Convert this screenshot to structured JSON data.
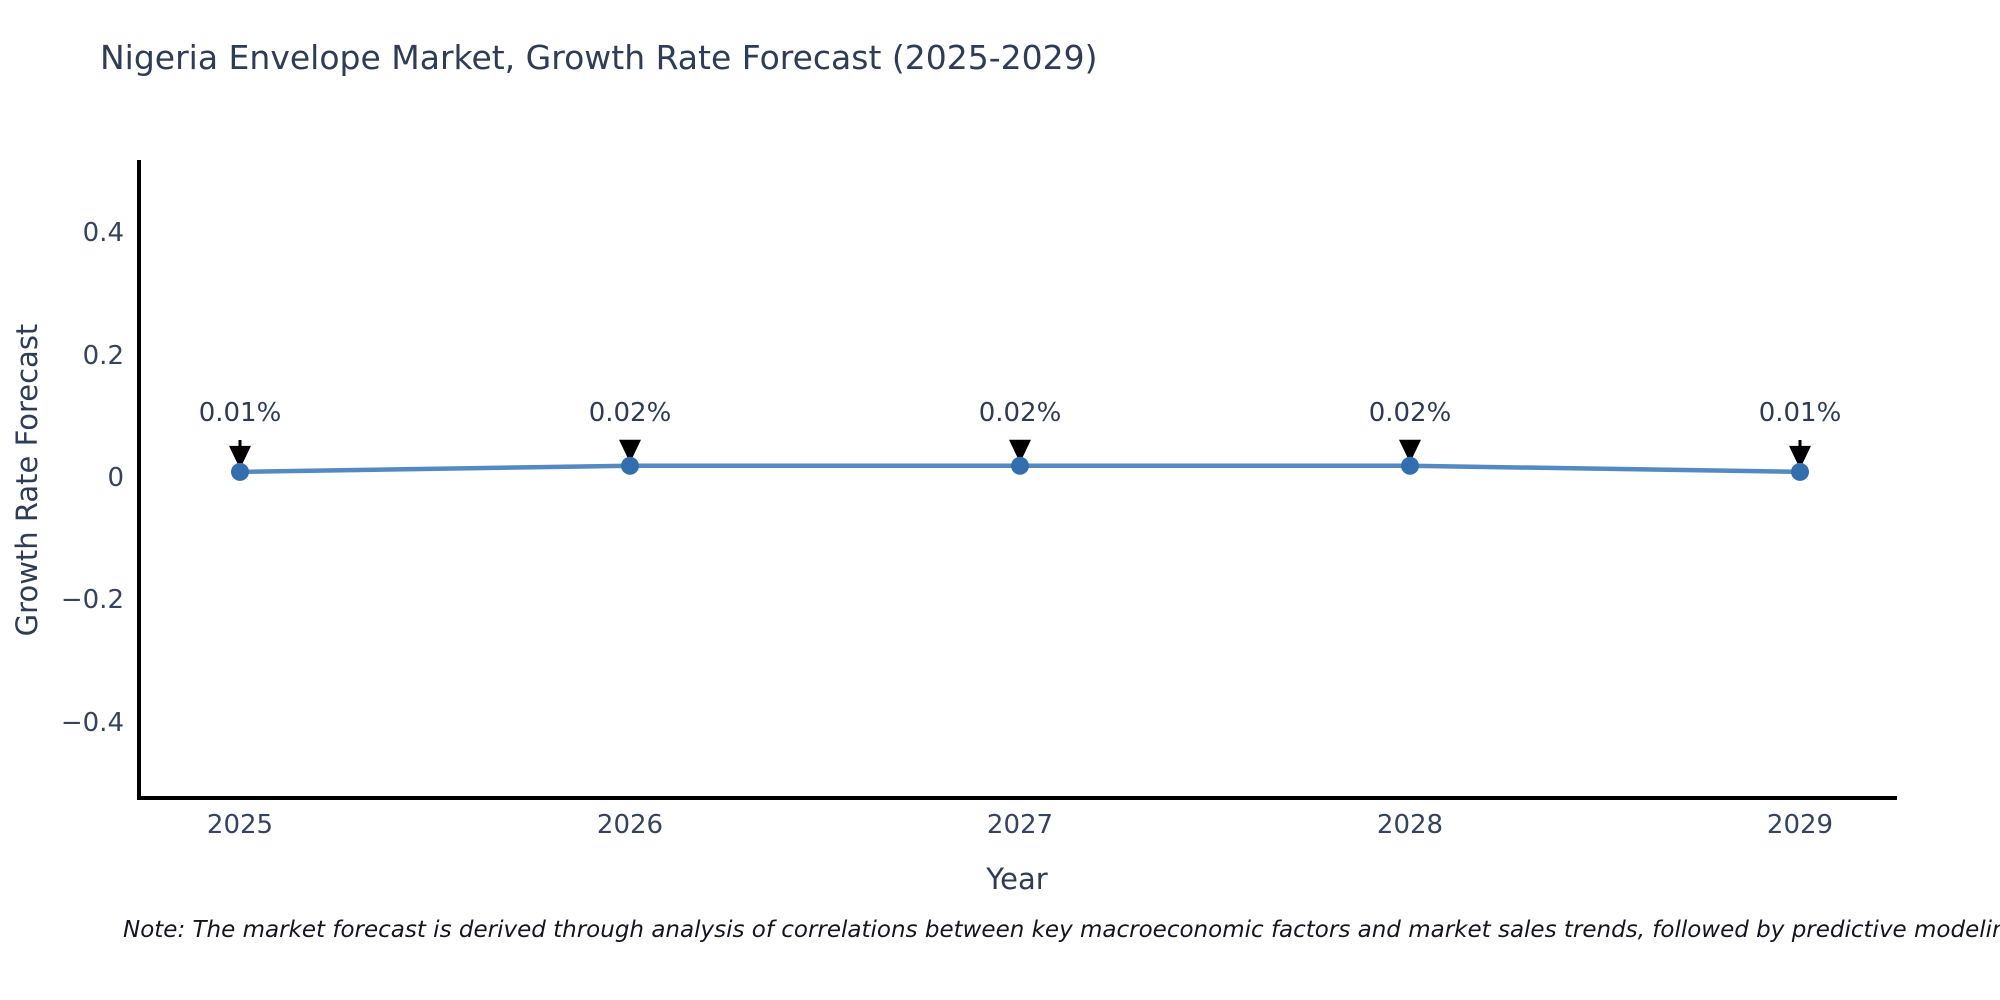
{
  "title": "Nigeria Envelope Market, Growth Rate Forecast (2025-2029)",
  "note": "Note: The market forecast is derived through analysis of correlations between key macroeconomic factors and market sales trends, followed by predictive modeling to project future sal",
  "chart_data": {
    "type": "line",
    "title": "Nigeria Envelope Market, Growth Rate Forecast (2025-2029)",
    "xlabel": "Year",
    "ylabel": "Growth Rate Forecast",
    "categories": [
      "2025",
      "2026",
      "2027",
      "2028",
      "2029"
    ],
    "x": [
      2025,
      2026,
      2027,
      2028,
      2029
    ],
    "values": [
      0.01,
      0.02,
      0.02,
      0.02,
      0.01
    ],
    "point_labels": [
      "0.01%",
      "0.02%",
      "0.02%",
      "0.02%",
      "0.01%"
    ],
    "yticks": [
      0.4,
      0.2,
      0,
      -0.2,
      -0.4
    ],
    "ytick_labels": [
      "0.4",
      "0.2",
      "0",
      "−0.2",
      "−0.4"
    ],
    "ylim": [
      -0.52,
      0.52
    ],
    "grid": false,
    "legend_position": "none",
    "line_color": "#5589c2",
    "marker_color": "#336fae",
    "arrow_color": "#000000",
    "axis_color": "#000000"
  }
}
